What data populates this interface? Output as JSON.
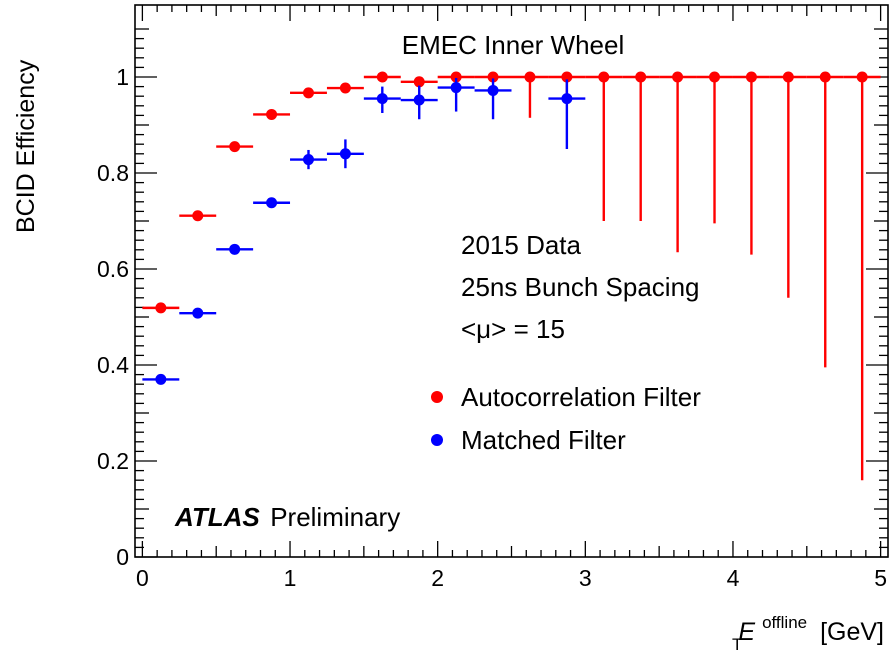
{
  "chart_data": {
    "type": "scatter",
    "title": "EMEC Inner Wheel",
    "xlabel": {
      "symbol": "E",
      "sub": "T",
      "sup": "offline",
      "unit": "[GeV]"
    },
    "ylabel": "BCID Efficiency",
    "xlim": [
      -0.05,
      5.05
    ],
    "ylim": [
      0,
      1.15
    ],
    "x_ticks": [
      0,
      1,
      2,
      3,
      4,
      5
    ],
    "y_ticks": [
      0,
      0.2,
      0.4,
      0.6,
      0.8,
      1
    ],
    "y_tick_labels": [
      "0",
      "0.2",
      "0.4",
      "0.6",
      "0.8",
      "1"
    ],
    "grid": false,
    "legend_position": "middle-right",
    "annotations": [
      "2015 Data",
      "25ns Bunch Spacing",
      "<μ> = 15"
    ],
    "atlas_label": {
      "bold": "ATLAS",
      "rest": "Preliminary"
    },
    "series": [
      {
        "name": "Autocorrelation Filter",
        "color": "#ff0000",
        "x": [
          0.125,
          0.375,
          0.625,
          0.875,
          1.125,
          1.375,
          1.625,
          1.875,
          2.125,
          2.375,
          2.625,
          2.875,
          3.125,
          3.375,
          3.625,
          3.875,
          4.125,
          4.375,
          4.625,
          4.875
        ],
        "xerr": 0.125,
        "y": [
          0.519,
          0.711,
          0.855,
          0.922,
          0.967,
          0.977,
          1.0,
          0.99,
          1.0,
          1.0,
          1.0,
          1.0,
          1.0,
          1.0,
          1.0,
          1.0,
          1.0,
          1.0,
          1.0,
          1.0
        ],
        "yerr_low": [
          0.006,
          0.008,
          0.007,
          0.007,
          0.007,
          0.008,
          0.006,
          0.015,
          0.003,
          0.003,
          0.085,
          0.05,
          0.3,
          0.3,
          0.365,
          0.305,
          0.37,
          0.46,
          0.605,
          0.84
        ],
        "yerr_high": [
          0.006,
          0.008,
          0.007,
          0.007,
          0.007,
          0.008,
          0.0,
          0.01,
          0.0,
          0.0,
          0.0,
          0.0,
          0.0,
          0.0,
          0.0,
          0.0,
          0.0,
          0.0,
          0.0,
          0.0
        ]
      },
      {
        "name": "Matched Filter",
        "color": "#0000ff",
        "x": [
          0.125,
          0.375,
          0.625,
          0.875,
          1.125,
          1.375,
          1.625,
          1.875,
          2.125,
          2.375,
          2.875
        ],
        "xerr": 0.125,
        "y": [
          0.37,
          0.508,
          0.641,
          0.738,
          0.828,
          0.84,
          0.955,
          0.952,
          0.978,
          0.972,
          0.955
        ],
        "yerr_low": [
          0.007,
          0.008,
          0.008,
          0.01,
          0.02,
          0.03,
          0.03,
          0.04,
          0.05,
          0.06,
          0.105
        ],
        "yerr_high": [
          0.007,
          0.008,
          0.008,
          0.01,
          0.02,
          0.03,
          0.025,
          0.03,
          0.02,
          0.025,
          0.04
        ]
      }
    ]
  }
}
